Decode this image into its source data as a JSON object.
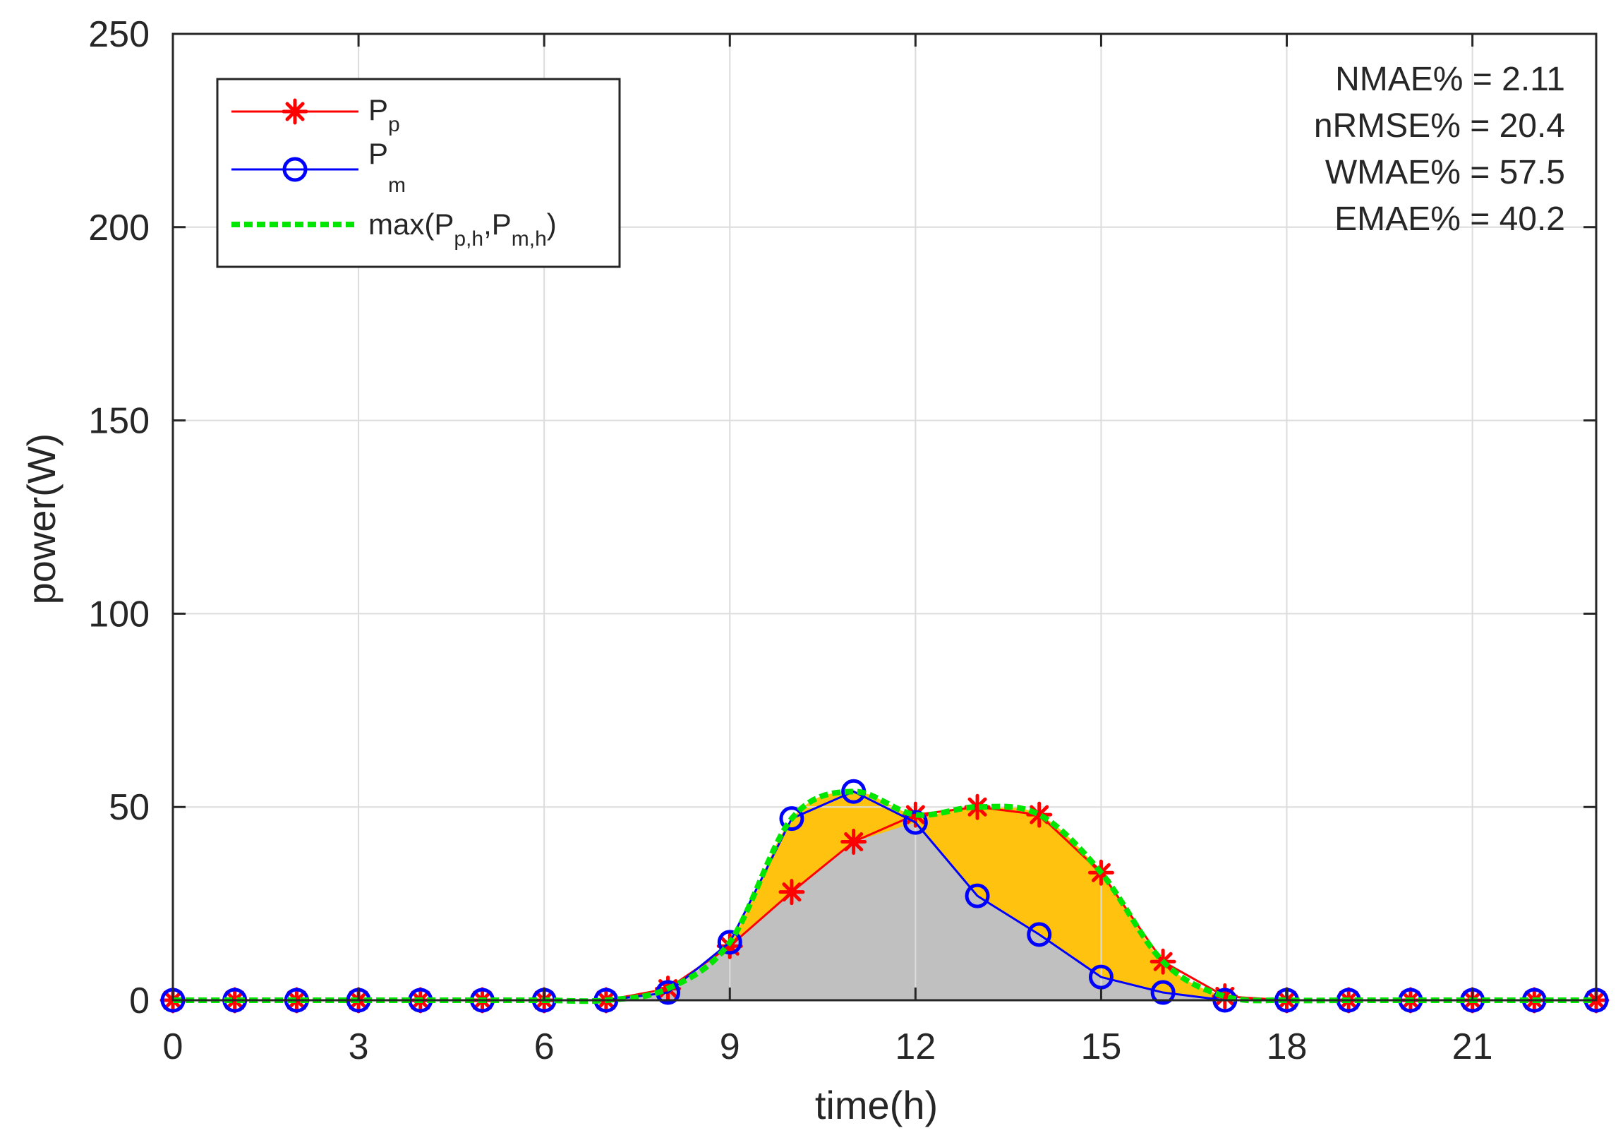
{
  "chart_data": {
    "type": "line",
    "title": "",
    "xlabel": "time(h)",
    "ylabel": "power(W)",
    "xlim": [
      0,
      23
    ],
    "ylim": [
      0,
      250
    ],
    "xticks": [
      0,
      3,
      6,
      9,
      12,
      15,
      18,
      21
    ],
    "yticks": [
      0,
      50,
      100,
      150,
      200,
      250
    ],
    "grid": true,
    "legend_position": "top-left",
    "x": [
      0,
      1,
      2,
      3,
      4,
      5,
      6,
      7,
      8,
      9,
      10,
      11,
      12,
      13,
      14,
      15,
      16,
      17,
      18,
      19,
      20,
      21,
      22,
      23
    ],
    "series": [
      {
        "name": "P_p",
        "legend_main": "P",
        "legend_sub": "p",
        "color": "#ff0000",
        "marker": "asterisk",
        "values": [
          0,
          0,
          0,
          0,
          0,
          0,
          0,
          0,
          3,
          14,
          28,
          41,
          48,
          50,
          48,
          33,
          10,
          1,
          0,
          0,
          0,
          0,
          0,
          0
        ]
      },
      {
        "name": "P_m",
        "legend_main": "P",
        "legend_sub": "m",
        "color": "#0000ff",
        "marker": "circle",
        "values": [
          0,
          0,
          0,
          0,
          0,
          0,
          0,
          0,
          2,
          15,
          47,
          54,
          46,
          27,
          17,
          6,
          2,
          0,
          0,
          0,
          0,
          0,
          0,
          0
        ]
      },
      {
        "name": "max(P_p,h,P_m,h)",
        "legend_parts": [
          "max(P",
          "p,h",
          ",P",
          "m,h",
          ")"
        ],
        "color": "#00e600",
        "style": "dotted",
        "smooth": true,
        "values": [
          0,
          0,
          0,
          0,
          0,
          0,
          0,
          0,
          3,
          15,
          47,
          54,
          48,
          50,
          48,
          33,
          10,
          1,
          0,
          0,
          0,
          0,
          0,
          0
        ]
      }
    ],
    "fills": [
      {
        "name": "overlap-area",
        "color": "#c0c0c0",
        "description": "min of series"
      },
      {
        "name": "difference-area",
        "color": "#ffc20e",
        "description": "between min and max"
      }
    ],
    "annotations": [
      "NMAE% = 2.11",
      "nRMSE% = 20.4",
      "WMAE% = 57.5",
      "EMAE% = 40.2"
    ],
    "colors": {
      "grid": "#dcdcdc",
      "axis": "#262626",
      "fill_gray": "#c0c0c0",
      "fill_orange": "#ffc20e",
      "red": "#ff0000",
      "blue": "#0000ff",
      "green": "#00e600"
    }
  }
}
